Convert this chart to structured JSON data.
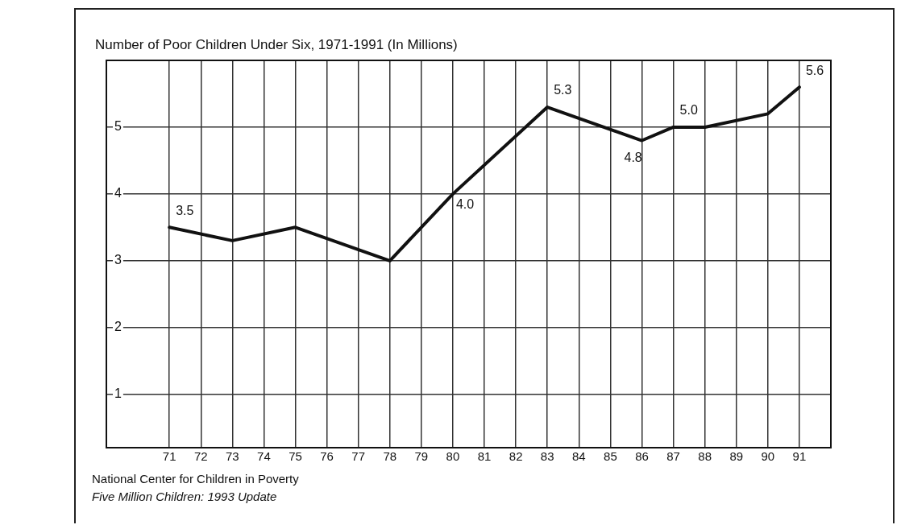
{
  "chart_data": {
    "type": "line",
    "title": "Number of Poor Children Under Six, 1971-1991 (In Millions)",
    "x": [
      71,
      73,
      75,
      78,
      80,
      83,
      86,
      87,
      88,
      90,
      91
    ],
    "series": [
      {
        "color": "#111111",
        "values": [
          3.5,
          3.3,
          3.5,
          3.0,
          4.0,
          5.3,
          4.8,
          5.0,
          5.0,
          5.2,
          5.6
        ],
        "value_labels": [
          "3.5",
          null,
          null,
          null,
          "4.0",
          "5.3",
          "4.8",
          "5.0",
          null,
          null,
          "5.6"
        ]
      }
    ],
    "xlim": [
      69,
      92
    ],
    "xticks": [
      71,
      72,
      73,
      74,
      75,
      76,
      77,
      78,
      79,
      80,
      81,
      82,
      83,
      84,
      85,
      86,
      87,
      88,
      89,
      90,
      91
    ],
    "ylim": [
      0.2,
      6
    ],
    "yticks": [
      1,
      2,
      3,
      4,
      5
    ],
    "grid": true,
    "marker": "none",
    "line_style": "solid",
    "legend": false,
    "annotations": [
      "National Center for Children in Poverty",
      "Five Million Children:  1993 Update"
    ]
  }
}
